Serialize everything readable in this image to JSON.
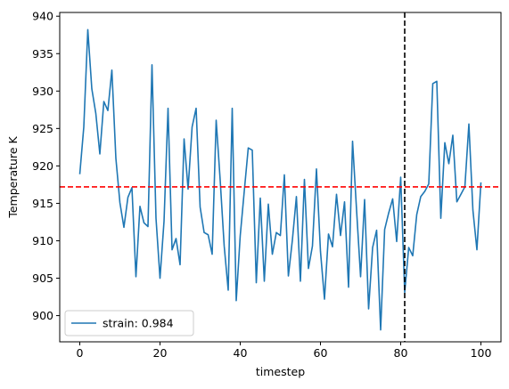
{
  "chart_data": {
    "type": "line",
    "xlabel": "timestep",
    "ylabel": "Temperature K",
    "xlim": [
      -5,
      105
    ],
    "ylim": [
      896.5,
      940.5
    ],
    "xticks": [
      0,
      20,
      40,
      60,
      80,
      100
    ],
    "yticks": [
      900,
      905,
      910,
      915,
      920,
      925,
      930,
      935,
      940
    ],
    "grid": false,
    "legend_position": "lower-left",
    "hline": {
      "y": 917.2,
      "color": "#ff0000",
      "style": "dashed"
    },
    "vline": {
      "x": 81,
      "color": "#000000",
      "style": "dashed"
    },
    "series": [
      {
        "name": "strain: 0.984",
        "color": "#1f77b4",
        "x": [
          0,
          1,
          2,
          3,
          4,
          5,
          6,
          7,
          8,
          9,
          10,
          11,
          12,
          13,
          14,
          15,
          16,
          17,
          18,
          19,
          20,
          21,
          22,
          23,
          24,
          25,
          26,
          27,
          28,
          29,
          30,
          31,
          32,
          33,
          34,
          35,
          36,
          37,
          38,
          39,
          40,
          41,
          42,
          43,
          44,
          45,
          46,
          47,
          48,
          49,
          50,
          51,
          52,
          53,
          54,
          55,
          56,
          57,
          58,
          59,
          60,
          61,
          62,
          63,
          64,
          65,
          66,
          67,
          68,
          69,
          70,
          71,
          72,
          73,
          74,
          75,
          76,
          77,
          78,
          79,
          80,
          81,
          82,
          83,
          84,
          85,
          86,
          87,
          88,
          89,
          90,
          91,
          92,
          93,
          94,
          95,
          96,
          97,
          98,
          99,
          100
        ],
        "values": [
          918.9,
          925.2,
          938.2,
          930.3,
          927.0,
          921.6,
          928.6,
          927.4,
          932.8,
          921.0,
          915.1,
          911.8,
          915.8,
          917.1,
          905.2,
          914.6,
          912.4,
          911.9,
          933.5,
          913.0,
          905.0,
          912.6,
          927.7,
          908.8,
          910.3,
          906.8,
          923.6,
          916.9,
          925.2,
          927.7,
          914.5,
          911.1,
          910.8,
          908.2,
          926.1,
          918.1,
          909.3,
          903.4,
          927.7,
          902.0,
          910.7,
          916.6,
          922.4,
          922.1,
          904.4,
          915.7,
          904.6,
          914.9,
          908.2,
          911.1,
          910.7,
          918.8,
          905.3,
          910.1,
          915.9,
          904.6,
          918.2,
          906.3,
          909.3,
          919.6,
          908.6,
          902.2,
          910.9,
          909.2,
          916.2,
          910.7,
          915.2,
          903.8,
          923.3,
          914.1,
          905.2,
          915.5,
          900.9,
          909.1,
          911.4,
          898.1,
          911.5,
          913.7,
          915.6,
          909.9,
          918.5,
          903.1,
          909.1,
          908.0,
          913.5,
          915.9,
          916.6,
          917.6,
          931.0,
          931.3,
          913.0,
          923.1,
          920.3,
          924.1,
          915.2,
          916.2,
          917.2,
          925.6,
          914.1,
          908.8,
          917.8
        ]
      }
    ]
  }
}
